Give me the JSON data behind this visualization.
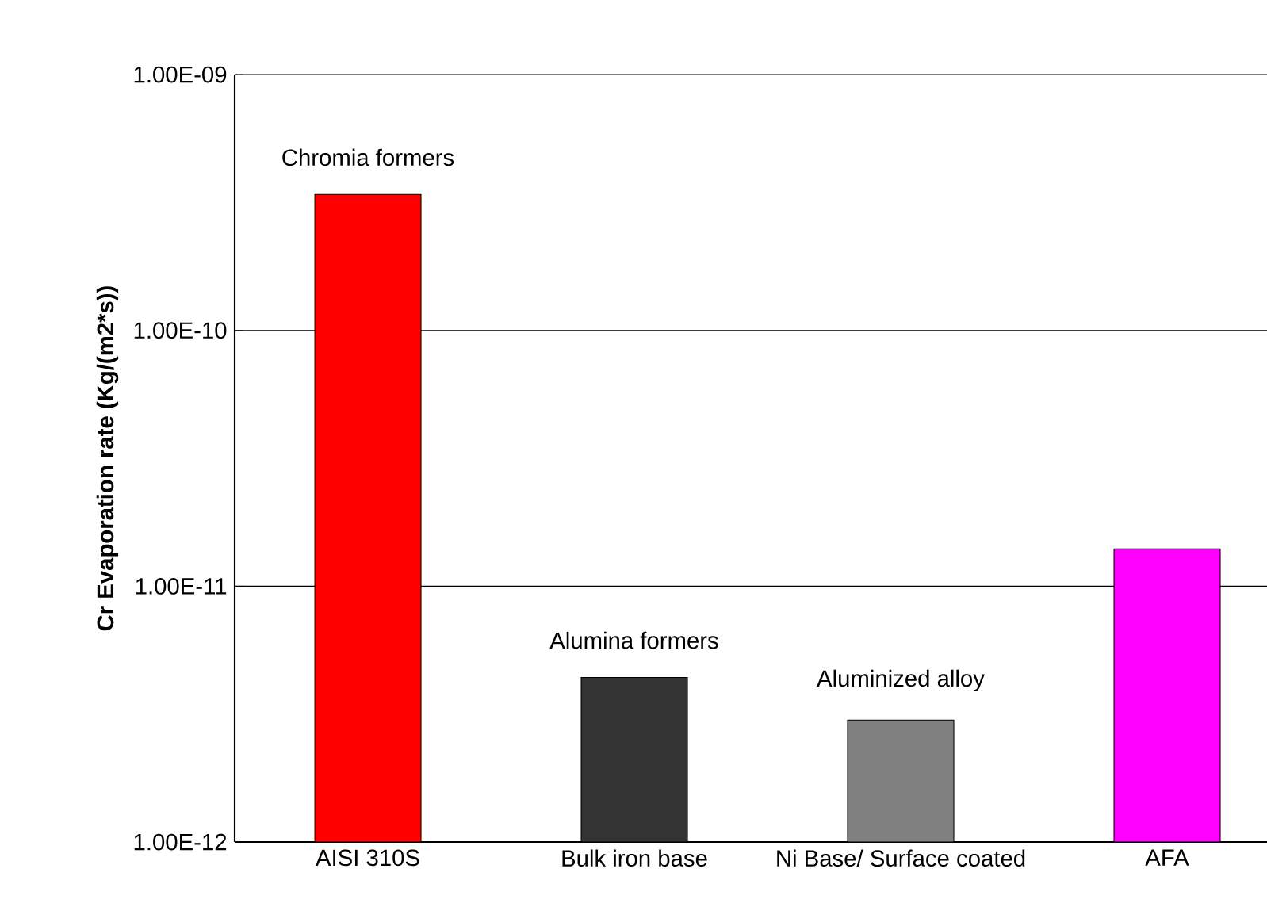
{
  "chart_data": {
    "type": "bar",
    "ylabel": "Cr Evaporation rate (Kg/(m2*s))",
    "categories": [
      "AISI 310S",
      "Bulk iron base",
      "Ni Base/ Surface coated",
      "AFA"
    ],
    "values": [
      3.4e-10,
      4.4e-12,
      3e-12,
      1.4e-11
    ],
    "colors": [
      "#ff0000",
      "#333333",
      "#808080",
      "#ff00ff"
    ],
    "log": "y",
    "grid": "y",
    "ylim": [
      1e-12,
      1e-09
    ],
    "yticks": [
      {
        "value": 1e-12,
        "label": "1.00E-12"
      },
      {
        "value": 1e-11,
        "label": "1.00E-11"
      },
      {
        "value": 1e-10,
        "label": "1.00E-10"
      },
      {
        "value": 1e-09,
        "label": "1.00E-09"
      }
    ],
    "annotations": [
      {
        "text": "Chromia formers",
        "x": "AISI 310S",
        "y": 3.4e-10
      },
      {
        "text": "Alumina formers",
        "x": "Bulk iron base",
        "y": 4.4e-12
      },
      {
        "text": "Aluminized alloy",
        "x": "Ni Base/ Surface coated",
        "y": 3e-12
      }
    ]
  }
}
